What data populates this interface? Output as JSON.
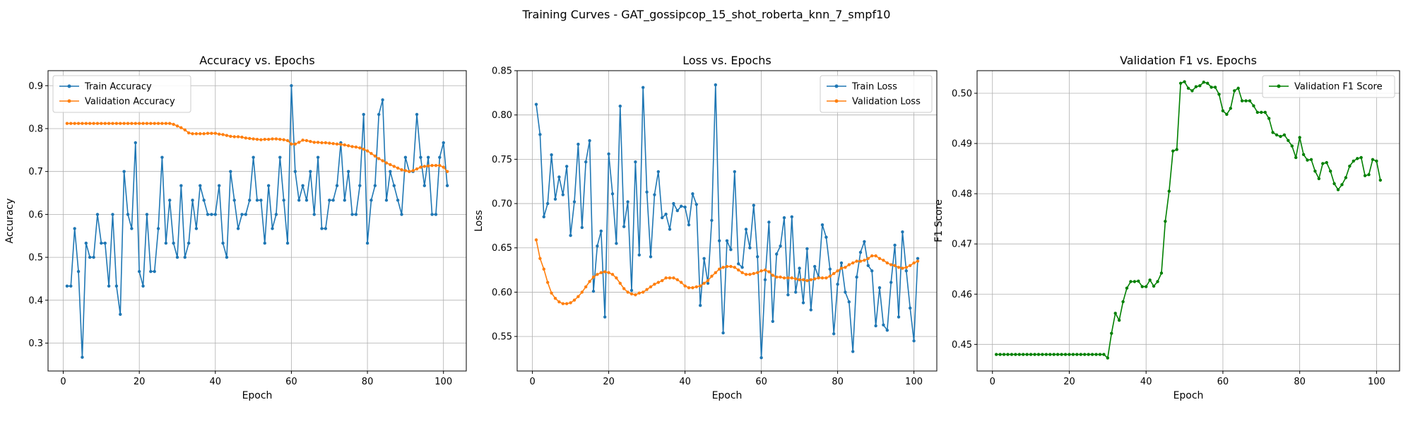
{
  "figure": {
    "suptitle": "Training Curves - GAT_gossipcop_15_shot_roberta_knn_7_smpf10"
  },
  "chart_data": [
    {
      "type": "line",
      "title": "Accuracy vs. Epochs",
      "xlabel": "Epoch",
      "ylabel": "Accuracy",
      "xlim": [
        -4,
        106
      ],
      "ylim": [
        0.235,
        0.935
      ],
      "xticks": [
        0,
        20,
        40,
        60,
        80,
        100
      ],
      "yticks": [
        0.3,
        0.4,
        0.5,
        0.6,
        0.7,
        0.8,
        0.9
      ],
      "ytick_labels": [
        "0.3",
        "0.4",
        "0.5",
        "0.6",
        "0.7",
        "0.8",
        "0.9"
      ],
      "grid": true,
      "legend": "upper left",
      "series": [
        {
          "name": "Train Accuracy",
          "color": "#1f77b4",
          "x_start": 1,
          "values": [
            0.433,
            0.433,
            0.567,
            0.467,
            0.267,
            0.533,
            0.5,
            0.5,
            0.6,
            0.533,
            0.533,
            0.433,
            0.6,
            0.433,
            0.367,
            0.7,
            0.6,
            0.567,
            0.767,
            0.467,
            0.433,
            0.6,
            0.467,
            0.467,
            0.567,
            0.733,
            0.533,
            0.633,
            0.533,
            0.5,
            0.667,
            0.5,
            0.533,
            0.633,
            0.567,
            0.667,
            0.633,
            0.6,
            0.6,
            0.6,
            0.667,
            0.533,
            0.5,
            0.7,
            0.633,
            0.567,
            0.6,
            0.6,
            0.633,
            0.733,
            0.633,
            0.633,
            0.533,
            0.667,
            0.567,
            0.6,
            0.733,
            0.633,
            0.533,
            0.9,
            0.7,
            0.633,
            0.667,
            0.633,
            0.7,
            0.6,
            0.733,
            0.567,
            0.567,
            0.633,
            0.633,
            0.667,
            0.767,
            0.633,
            0.7,
            0.6,
            0.6,
            0.667,
            0.833,
            0.533,
            0.633,
            0.667,
            0.833,
            0.867,
            0.633,
            0.7,
            0.667,
            0.633,
            0.6,
            0.733,
            0.7,
            0.7,
            0.833,
            0.733,
            0.667,
            0.733,
            0.6,
            0.6,
            0.733,
            0.767,
            0.667
          ]
        },
        {
          "name": "Validation Accuracy",
          "color": "#ff7f0e",
          "x_start": 1,
          "values": [
            0.812,
            0.812,
            0.812,
            0.812,
            0.812,
            0.812,
            0.812,
            0.812,
            0.812,
            0.812,
            0.812,
            0.812,
            0.812,
            0.812,
            0.812,
            0.812,
            0.812,
            0.812,
            0.812,
            0.812,
            0.812,
            0.812,
            0.812,
            0.812,
            0.812,
            0.812,
            0.812,
            0.812,
            0.81,
            0.806,
            0.802,
            0.797,
            0.79,
            0.788,
            0.788,
            0.788,
            0.788,
            0.789,
            0.789,
            0.789,
            0.787,
            0.786,
            0.784,
            0.782,
            0.781,
            0.781,
            0.78,
            0.778,
            0.777,
            0.776,
            0.775,
            0.774,
            0.775,
            0.775,
            0.776,
            0.776,
            0.775,
            0.774,
            0.772,
            0.764,
            0.764,
            0.768,
            0.773,
            0.772,
            0.77,
            0.768,
            0.768,
            0.767,
            0.767,
            0.766,
            0.765,
            0.764,
            0.763,
            0.762,
            0.76,
            0.758,
            0.757,
            0.755,
            0.752,
            0.748,
            0.742,
            0.736,
            0.73,
            0.725,
            0.72,
            0.716,
            0.712,
            0.708,
            0.704,
            0.702,
            0.7,
            0.702,
            0.706,
            0.71,
            0.712,
            0.713,
            0.714,
            0.714,
            0.714,
            0.71,
            0.7
          ]
        }
      ]
    },
    {
      "type": "line",
      "title": "Loss vs. Epochs",
      "xlabel": "Epoch",
      "ylabel": "Loss",
      "xlim": [
        -4,
        106
      ],
      "ylim": [
        0.511,
        0.85
      ],
      "xticks": [
        0,
        20,
        40,
        60,
        80,
        100
      ],
      "yticks": [
        0.55,
        0.6,
        0.65,
        0.7,
        0.75,
        0.8,
        0.85
      ],
      "ytick_labels": [
        "0.55",
        "0.60",
        "0.65",
        "0.70",
        "0.75",
        "0.80",
        "0.85"
      ],
      "grid": true,
      "legend": "upper right",
      "series": [
        {
          "name": "Train Loss",
          "color": "#1f77b4",
          "x_start": 1,
          "values": [
            0.812,
            0.778,
            0.685,
            0.7,
            0.755,
            0.705,
            0.73,
            0.71,
            0.742,
            0.664,
            0.702,
            0.767,
            0.673,
            0.747,
            0.771,
            0.601,
            0.652,
            0.669,
            0.572,
            0.756,
            0.711,
            0.655,
            0.81,
            0.674,
            0.702,
            0.602,
            0.747,
            0.642,
            0.831,
            0.713,
            0.64,
            0.71,
            0.736,
            0.684,
            0.688,
            0.671,
            0.7,
            0.692,
            0.697,
            0.696,
            0.676,
            0.711,
            0.699,
            0.585,
            0.638,
            0.61,
            0.681,
            0.834,
            0.658,
            0.554,
            0.658,
            0.648,
            0.736,
            0.632,
            0.628,
            0.671,
            0.65,
            0.698,
            0.64,
            0.526,
            0.614,
            0.679,
            0.567,
            0.643,
            0.652,
            0.684,
            0.597,
            0.685,
            0.6,
            0.627,
            0.588,
            0.649,
            0.58,
            0.629,
            0.617,
            0.676,
            0.662,
            0.626,
            0.553,
            0.609,
            0.633,
            0.6,
            0.589,
            0.533,
            0.617,
            0.645,
            0.657,
            0.63,
            0.624,
            0.562,
            0.605,
            0.563,
            0.557,
            0.611,
            0.653,
            0.572,
            0.668,
            0.624,
            0.582,
            0.545,
            0.638
          ]
        },
        {
          "name": "Validation Loss",
          "color": "#ff7f0e",
          "x_start": 1,
          "values": [
            0.659,
            0.638,
            0.626,
            0.611,
            0.599,
            0.593,
            0.589,
            0.587,
            0.587,
            0.588,
            0.591,
            0.595,
            0.6,
            0.606,
            0.612,
            0.617,
            0.62,
            0.622,
            0.623,
            0.622,
            0.62,
            0.616,
            0.61,
            0.604,
            0.6,
            0.598,
            0.597,
            0.599,
            0.6,
            0.603,
            0.606,
            0.609,
            0.611,
            0.613,
            0.616,
            0.616,
            0.616,
            0.614,
            0.611,
            0.607,
            0.605,
            0.605,
            0.606,
            0.607,
            0.61,
            0.613,
            0.618,
            0.622,
            0.626,
            0.628,
            0.629,
            0.629,
            0.628,
            0.625,
            0.622,
            0.62,
            0.62,
            0.621,
            0.622,
            0.624,
            0.625,
            0.623,
            0.619,
            0.617,
            0.617,
            0.616,
            0.616,
            0.616,
            0.615,
            0.614,
            0.614,
            0.613,
            0.614,
            0.615,
            0.616,
            0.616,
            0.616,
            0.618,
            0.621,
            0.624,
            0.627,
            0.628,
            0.631,
            0.633,
            0.635,
            0.635,
            0.636,
            0.638,
            0.641,
            0.641,
            0.638,
            0.636,
            0.633,
            0.631,
            0.63,
            0.628,
            0.627,
            0.628,
            0.63,
            0.633,
            0.635
          ]
        }
      ]
    },
    {
      "type": "line",
      "title": "Validation F1 vs. Epochs",
      "xlabel": "Epoch",
      "ylabel": "F1 Score",
      "xlim": [
        -4,
        106
      ],
      "ylim": [
        0.4447,
        0.5045
      ],
      "xticks": [
        0,
        20,
        40,
        60,
        80,
        100
      ],
      "yticks": [
        0.45,
        0.46,
        0.47,
        0.48,
        0.49,
        0.5
      ],
      "ytick_labels": [
        "0.45",
        "0.46",
        "0.47",
        "0.48",
        "0.49",
        "0.50"
      ],
      "grid": true,
      "legend": "upper right",
      "series": [
        {
          "name": "Validation F1 Score",
          "color": "#008000",
          "x_start": 1,
          "values": [
            0.448,
            0.448,
            0.448,
            0.448,
            0.448,
            0.448,
            0.448,
            0.448,
            0.448,
            0.448,
            0.448,
            0.448,
            0.448,
            0.448,
            0.448,
            0.448,
            0.448,
            0.448,
            0.448,
            0.448,
            0.448,
            0.448,
            0.448,
            0.448,
            0.448,
            0.448,
            0.448,
            0.448,
            0.448,
            0.4473,
            0.4522,
            0.4562,
            0.4548,
            0.4585,
            0.4612,
            0.4625,
            0.4625,
            0.4626,
            0.4615,
            0.4615,
            0.4628,
            0.4616,
            0.4625,
            0.4642,
            0.4745,
            0.4805,
            0.4885,
            0.4888,
            0.502,
            0.5023,
            0.501,
            0.5005,
            0.5013,
            0.5015,
            0.5022,
            0.502,
            0.5012,
            0.5012,
            0.4998,
            0.4965,
            0.4958,
            0.497,
            0.5005,
            0.501,
            0.4985,
            0.4985,
            0.4985,
            0.4975,
            0.4962,
            0.4962,
            0.4962,
            0.495,
            0.4922,
            0.4917,
            0.4914,
            0.4917,
            0.4906,
            0.4895,
            0.4872,
            0.4912,
            0.4878,
            0.4867,
            0.4868,
            0.4845,
            0.483,
            0.486,
            0.4862,
            0.4845,
            0.482,
            0.4808,
            0.4818,
            0.4832,
            0.4855,
            0.4865,
            0.487,
            0.4872,
            0.4836,
            0.4838,
            0.4868,
            0.4865,
            0.4827
          ]
        }
      ]
    }
  ]
}
